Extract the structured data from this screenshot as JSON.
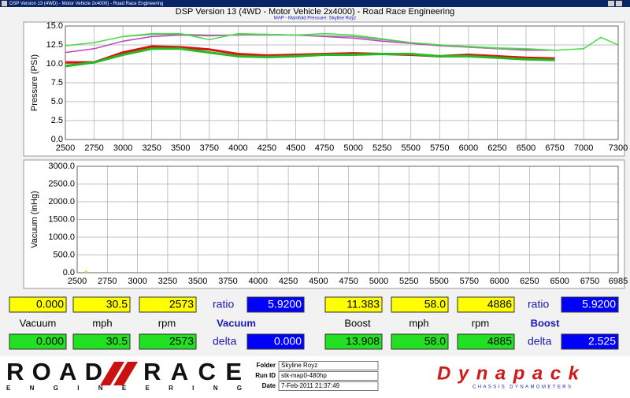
{
  "window_title": "DSP Version 13 (4WD) - Motor Vehicle 2x4000) - Road Race Engineering",
  "chart_data": [
    {
      "type": "line",
      "title": "DSP Version 13 (4WD - Motor Vehicle 2x4000) - Road Race Engineering",
      "subtitle": "MAP - Manifold Pressure: Skyline Royz",
      "y_label": "Pressure (PSI)",
      "xlim": [
        2500,
        7300
      ],
      "xticks": [
        2500,
        2750,
        3000,
        3250,
        3500,
        3750,
        4000,
        4250,
        4500,
        4750,
        5000,
        5250,
        5500,
        5750,
        6000,
        6250,
        6500,
        6750,
        7000,
        7300
      ],
      "ylim": [
        0,
        15
      ],
      "yticks": [
        {
          "value": 0,
          "label": "0.0"
        },
        2.5,
        {
          "value": 5,
          "label": "5.0"
        },
        7.5,
        {
          "value": 10,
          "label": "10.0"
        },
        12.5,
        {
          "value": 15,
          "label": "15.0"
        }
      ],
      "grid": true,
      "series": [
        {
          "color": "#c040c0",
          "width": 1.5,
          "x": [
            2500,
            2750,
            3000,
            3250,
            3500,
            3750,
            4000,
            4250,
            4500,
            4750,
            5000,
            5250,
            5500,
            5750,
            6000,
            6250,
            6500,
            6750
          ],
          "values": [
            11.5,
            12.0,
            13.0,
            13.6,
            13.8,
            13.7,
            13.8,
            13.9,
            13.8,
            13.6,
            13.4,
            13.0,
            12.7,
            12.4,
            12.2,
            12.0,
            11.8,
            11.8
          ]
        },
        {
          "color": "#909090",
          "width": 1.5,
          "x": [
            3000,
            3250,
            3500,
            3750,
            4000,
            4250,
            4500,
            4750,
            5000,
            5250,
            5500,
            5750,
            6000,
            6250,
            6500,
            6750
          ],
          "values": [
            13.6,
            13.9,
            13.9,
            13.8,
            13.8,
            13.8,
            13.8,
            13.7,
            13.6,
            13.2,
            12.8,
            12.5,
            12.2,
            12.0,
            11.9,
            11.8
          ]
        },
        {
          "color": "#44dd44",
          "width": 1.5,
          "x": [
            2500,
            2750,
            3000,
            3250,
            3500,
            3750,
            4000,
            4250,
            4500,
            4750,
            5000,
            5250,
            5500,
            5750,
            6000,
            6250,
            6500,
            6750,
            7000,
            7150,
            7300
          ],
          "values": [
            12.4,
            12.8,
            13.6,
            14.0,
            14.0,
            13.2,
            14.0,
            13.9,
            13.8,
            14.0,
            13.8,
            13.3,
            12.8,
            12.5,
            12.3,
            12.1,
            12.0,
            11.8,
            12.0,
            13.5,
            12.5
          ]
        },
        {
          "color": "#dd1111",
          "width": 3,
          "x": [
            2500,
            2750,
            3000,
            3250,
            3500,
            3750,
            4000,
            4250,
            4500,
            4750,
            5000,
            5250,
            5500,
            5750,
            6000,
            6250,
            6500,
            6750
          ],
          "values": [
            10.2,
            10.2,
            11.5,
            12.3,
            12.2,
            11.9,
            11.3,
            11.1,
            11.2,
            11.3,
            11.4,
            11.3,
            11.2,
            11.0,
            11.2,
            11.0,
            10.8,
            10.7
          ]
        },
        {
          "color": "#22bb22",
          "width": 3,
          "x": [
            2500,
            2750,
            3000,
            3250,
            3500,
            3750,
            4000,
            4250,
            4500,
            4750,
            5000,
            5250,
            5500,
            5750,
            6000,
            6250,
            6500,
            6750
          ],
          "values": [
            9.7,
            10.2,
            11.2,
            12.0,
            12.0,
            11.5,
            11.0,
            10.9,
            11.0,
            11.2,
            11.2,
            11.3,
            11.3,
            11.0,
            11.0,
            10.8,
            10.6,
            10.5
          ]
        }
      ]
    },
    {
      "type": "line",
      "y_label": "Vacuum (inHg)",
      "xlim": [
        2500,
        6985
      ],
      "xticks": [
        2500,
        2750,
        3000,
        3250,
        3500,
        3750,
        4000,
        4250,
        4500,
        4750,
        5000,
        5250,
        5500,
        5750,
        6000,
        6250,
        6500,
        6750,
        6985
      ],
      "ylim": [
        0,
        3000
      ],
      "yticks": [
        {
          "value": 0,
          "label": "0.0"
        },
        {
          "value": 500,
          "label": "500.0"
        },
        {
          "value": 1000,
          "label": "1000.0"
        },
        {
          "value": 1500,
          "label": "1500.0"
        },
        {
          "value": 2000,
          "label": "2000.0"
        },
        {
          "value": 2500,
          "label": "2500.0"
        },
        {
          "value": 3000,
          "label": "3000.0"
        }
      ],
      "grid": true,
      "series": [
        {
          "color": "#e0e000",
          "width": 2,
          "x": [
            2573
          ],
          "values": [
            30
          ]
        }
      ]
    }
  ],
  "readouts": {
    "row1": [
      "0.000",
      "30.5",
      "2573",
      "ratio",
      "5.9200",
      "11.383",
      "58.0",
      "4886",
      "ratio",
      "5.9200"
    ],
    "row2": [
      "Vacuum",
      "mph",
      "rpm",
      "Vacuum",
      "Boost",
      "mph",
      "rpm",
      "Boost"
    ],
    "row3": [
      "0.000",
      "30.5",
      "2573",
      "delta",
      "0.000",
      "13.908",
      "58.0",
      "4885",
      "delta",
      "2.525"
    ]
  },
  "footer": {
    "logo_left": [
      "ROAD",
      "RACE",
      "ENGINEERING"
    ],
    "fields": [
      {
        "label": "Folder",
        "value": "Skyline Royz"
      },
      {
        "label": "Run ID",
        "value": "stk-map0-480hp"
      },
      {
        "label": "Date",
        "value": "7-Feb-2011 21:37:49"
      }
    ],
    "logo_right": [
      "Dynapack",
      "CHASSIS DYNAMOMETERS"
    ]
  }
}
